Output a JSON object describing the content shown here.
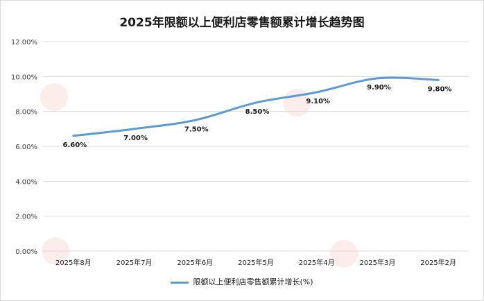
{
  "chart_data": {
    "type": "line",
    "title": "2025年限额以上便利店零售额累计增长趋势图",
    "categories": [
      "2025年8月",
      "2025年7月",
      "2025年6月",
      "2025年5月",
      "2025年4月",
      "2025年3月",
      "2025年2月"
    ],
    "series": [
      {
        "name": "限额以上便利店零售额累计增长(%)",
        "values": [
          6.6,
          7.0,
          7.5,
          8.5,
          9.1,
          9.9,
          9.8
        ],
        "data_labels": [
          "6.60%",
          "7.00%",
          "7.50%",
          "8.50%",
          "9.10%",
          "9.90%",
          "9.80%"
        ],
        "color": "#5b9bd5"
      }
    ],
    "y_ticks": [
      "0.00%",
      "2.00%",
      "4.00%",
      "6.00%",
      "8.00%",
      "10.00%",
      "12.00%"
    ],
    "ylim": [
      0,
      12
    ],
    "grid": true,
    "legend_position": "bottom",
    "xlabel": "",
    "ylabel": ""
  },
  "colors": {
    "series": "#5b9bd5",
    "grid": "#d9d9d9",
    "text": "#404040"
  }
}
